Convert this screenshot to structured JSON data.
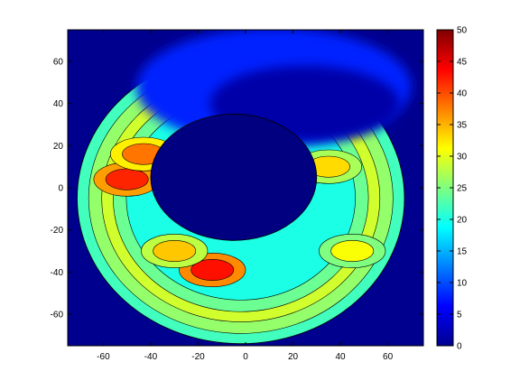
{
  "chart_data": {
    "type": "heatmap",
    "title": "",
    "xlabel": "",
    "ylabel": "",
    "xlim": [
      -75,
      75
    ],
    "ylim": [
      -75,
      75
    ],
    "x_ticks": [
      "-60",
      "-40",
      "-20",
      "0",
      "20",
      "40",
      "60"
    ],
    "y_ticks": [
      "60",
      "40",
      "20",
      "0",
      "-20",
      "-40",
      "-60"
    ],
    "colorbar": {
      "min": 0,
      "max": 50,
      "colormap": "jet",
      "ticks": [
        "50",
        "45",
        "40",
        "35",
        "30",
        "25",
        "20",
        "15",
        "10",
        "5",
        "0"
      ]
    },
    "domain": {
      "shape": "circle",
      "center": [
        -2,
        -5
      ],
      "radius": 69
    },
    "inner_low_region": {
      "center": [
        -5,
        5
      ],
      "radius_x": 35,
      "radius_y": 30,
      "value": 0
    },
    "hotspots": [
      {
        "name": "",
        "x": -14,
        "y": -39,
        "value": 43
      },
      {
        "name": "",
        "x": -50,
        "y": 4,
        "value": 42
      },
      {
        "name": "",
        "x": -43,
        "y": 16,
        "value": 38
      },
      {
        "name": "",
        "x": 35,
        "y": 10,
        "value": 33
      },
      {
        "name": "",
        "x": 45,
        "y": -30,
        "value": 31
      },
      {
        "name": "",
        "x": -30,
        "y": -30,
        "value": 34
      }
    ],
    "colors": {
      "background": "#00008f",
      "gridline": "#000000"
    }
  }
}
